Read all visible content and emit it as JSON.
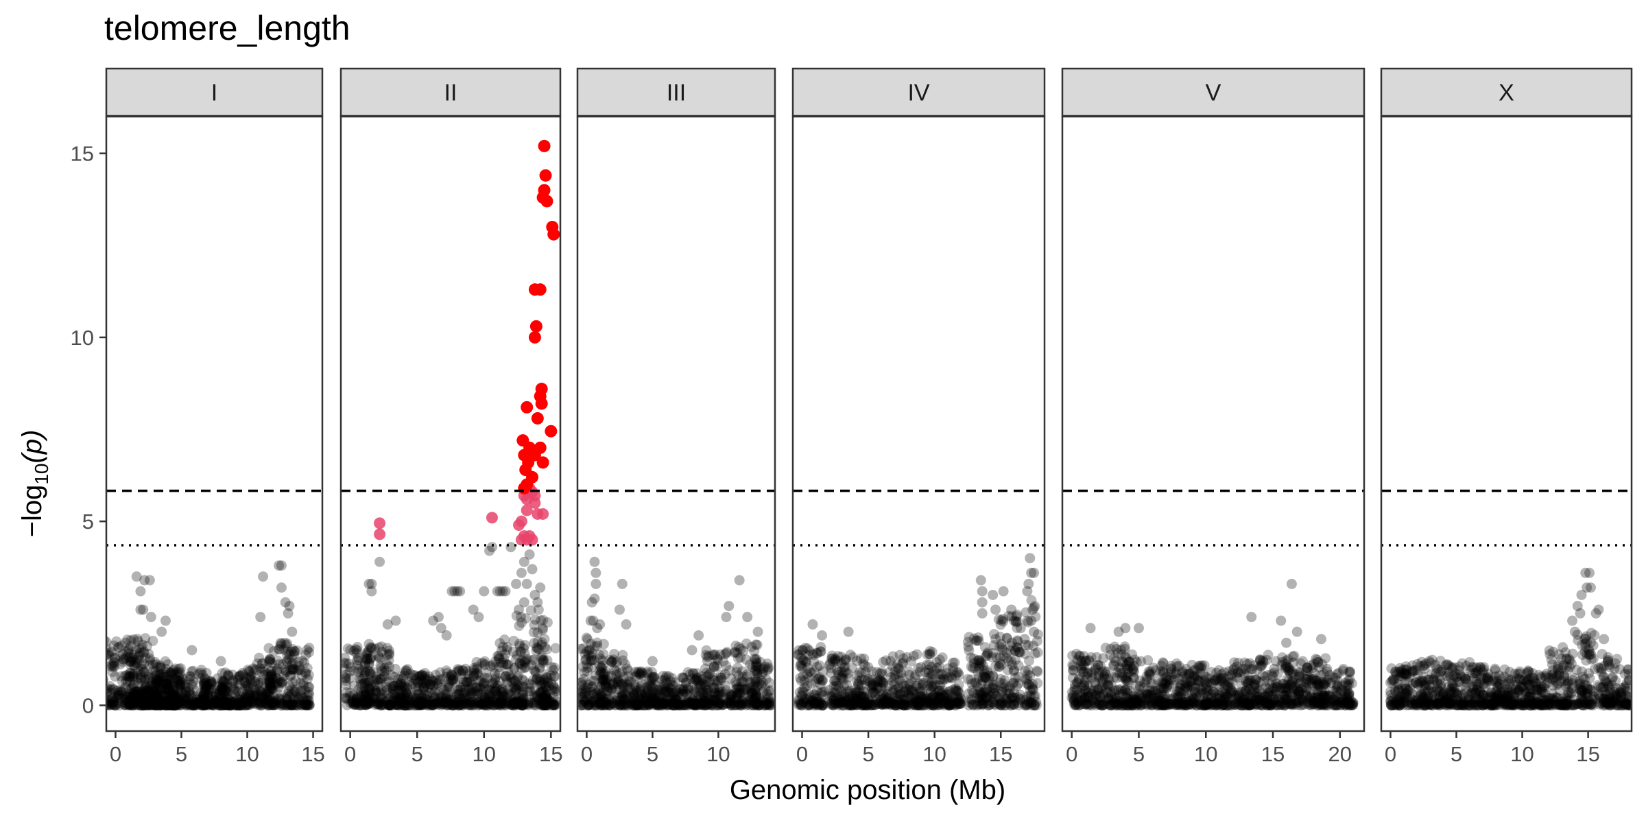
{
  "chart_data": {
    "type": "scatter",
    "title": "telomere_length",
    "xlabel": "Genomic position (Mb)",
    "ylabel_main": "−log",
    "ylabel_sub": "10",
    "ylabel_rest": "(p)",
    "ylim": [
      -0.7,
      16.0
    ],
    "yticks": [
      0,
      5,
      10,
      15
    ],
    "thresholds": {
      "bonferroni_dashed": 5.83,
      "eigen_dotted": 4.35
    },
    "colors": {
      "background_points": "#000000",
      "above_bonferroni": "#ff0000",
      "above_eigen": "#e8436b",
      "strip_fill": "#d9d9d9"
    },
    "panels": [
      {
        "chromosome": "I",
        "xlim": [
          -0.7,
          15.7
        ],
        "xticks": [
          0,
          5,
          10,
          15
        ],
        "bulk_density": [
          [
            0.5,
            3.0,
            1.8
          ],
          [
            2.0,
            2.0,
            1.9
          ],
          [
            3.0,
            2.0,
            1.2
          ],
          [
            4.0,
            2.0,
            1.1
          ],
          [
            5.5,
            3.0,
            1.0
          ],
          [
            7.5,
            2.0,
            0.8
          ],
          [
            9.0,
            2.0,
            0.9
          ],
          [
            11.0,
            2.0,
            1.3
          ],
          [
            12.5,
            2.0,
            1.7
          ],
          [
            14.0,
            1.5,
            1.6
          ]
        ],
        "sparse_points": [
          [
            1.6,
            3.5
          ],
          [
            1.9,
            3.1
          ],
          [
            1.9,
            2.6
          ],
          [
            2.1,
            2.6
          ],
          [
            2.2,
            3.4
          ],
          [
            2.6,
            3.4
          ],
          [
            2.7,
            2.4
          ],
          [
            3.5,
            2.0
          ],
          [
            3.8,
            2.3
          ],
          [
            5.8,
            1.5
          ],
          [
            8.0,
            1.2
          ],
          [
            11.2,
            3.5
          ],
          [
            11.0,
            2.4
          ],
          [
            12.4,
            3.8
          ],
          [
            12.6,
            3.8
          ],
          [
            12.6,
            3.2
          ],
          [
            12.9,
            2.8
          ],
          [
            13.1,
            2.5
          ],
          [
            13.4,
            2.0
          ],
          [
            13.2,
            2.7
          ]
        ],
        "pink_points": [],
        "red_points": []
      },
      {
        "chromosome": "II",
        "xlim": [
          -0.7,
          15.7
        ],
        "xticks": [
          0,
          5,
          10,
          15
        ],
        "bulk_density": [
          [
            0.5,
            2.0,
            1.6
          ],
          [
            2.0,
            2.0,
            1.7
          ],
          [
            4.0,
            2.0,
            1.0
          ],
          [
            6.0,
            2.0,
            0.9
          ],
          [
            8.0,
            2.0,
            1.0
          ],
          [
            10.0,
            2.0,
            1.2
          ],
          [
            12.0,
            2.0,
            1.8
          ],
          [
            13.5,
            2.5,
            2.6
          ],
          [
            14.8,
            1.2,
            1.6
          ]
        ],
        "sparse_points": [
          [
            1.4,
            3.3
          ],
          [
            1.6,
            3.1
          ],
          [
            1.6,
            3.3
          ],
          [
            2.2,
            3.9
          ],
          [
            2.8,
            2.2
          ],
          [
            3.4,
            2.3
          ],
          [
            6.2,
            2.3
          ],
          [
            6.6,
            2.4
          ],
          [
            6.8,
            2.1
          ],
          [
            7.2,
            1.9
          ],
          [
            7.6,
            3.1
          ],
          [
            7.8,
            3.1
          ],
          [
            8.0,
            3.1
          ],
          [
            8.2,
            3.1
          ],
          [
            9.2,
            2.6
          ],
          [
            9.6,
            2.4
          ],
          [
            10.0,
            3.1
          ],
          [
            10.4,
            4.2
          ],
          [
            10.6,
            4.3
          ],
          [
            11.0,
            3.1
          ],
          [
            11.2,
            3.1
          ],
          [
            11.4,
            3.1
          ],
          [
            11.6,
            3.1
          ],
          [
            12.0,
            4.3
          ],
          [
            12.4,
            3.3
          ],
          [
            12.8,
            3.6
          ],
          [
            13.0,
            3.9
          ],
          [
            13.2,
            3.3
          ],
          [
            13.4,
            4.1
          ],
          [
            13.6,
            3.7
          ],
          [
            13.8,
            3.0
          ],
          [
            14.0,
            2.8
          ],
          [
            14.2,
            3.2
          ],
          [
            12.6,
            2.6
          ],
          [
            13.0,
            2.8
          ]
        ],
        "pink_points": [
          [
            2.2,
            4.95
          ],
          [
            2.2,
            4.65
          ],
          [
            10.6,
            5.1
          ],
          [
            12.6,
            4.9
          ],
          [
            12.8,
            4.5
          ],
          [
            13.0,
            4.6
          ],
          [
            13.2,
            4.5
          ],
          [
            13.4,
            4.6
          ],
          [
            13.6,
            4.5
          ],
          [
            13.0,
            5.7
          ],
          [
            13.2,
            5.6
          ],
          [
            13.4,
            5.9
          ],
          [
            13.6,
            5.8
          ],
          [
            13.8,
            5.5
          ],
          [
            14.0,
            5.2
          ],
          [
            14.4,
            5.2
          ],
          [
            12.8,
            5.0
          ],
          [
            13.2,
            5.3
          ],
          [
            13.8,
            5.7
          ]
        ],
        "red_points": [
          [
            14.5,
            15.2
          ],
          [
            14.6,
            14.4
          ],
          [
            14.5,
            14.0
          ],
          [
            14.4,
            13.8
          ],
          [
            14.7,
            13.7
          ],
          [
            15.1,
            13.0
          ],
          [
            15.2,
            12.8
          ],
          [
            13.8,
            11.3
          ],
          [
            14.2,
            11.3
          ],
          [
            13.9,
            10.3
          ],
          [
            13.8,
            10.0
          ],
          [
            14.3,
            8.6
          ],
          [
            14.2,
            8.4
          ],
          [
            14.3,
            8.2
          ],
          [
            13.2,
            8.1
          ],
          [
            14.0,
            7.8
          ],
          [
            15.0,
            7.45
          ],
          [
            12.9,
            7.2
          ],
          [
            13.4,
            7.0
          ],
          [
            14.2,
            7.0
          ],
          [
            13.0,
            6.8
          ],
          [
            13.8,
            6.8
          ],
          [
            13.3,
            6.6
          ],
          [
            14.4,
            6.6
          ],
          [
            13.1,
            6.4
          ],
          [
            13.6,
            6.2
          ],
          [
            13.2,
            6.0
          ],
          [
            13.0,
            5.9
          ]
        ]
      },
      {
        "chromosome": "III",
        "xlim": [
          -0.7,
          14.3
        ],
        "xticks": [
          0,
          5,
          10
        ],
        "bulk_density": [
          [
            0.5,
            2.0,
            1.9
          ],
          [
            2.0,
            2.0,
            1.4
          ],
          [
            4.0,
            2.0,
            1.0
          ],
          [
            6.0,
            2.0,
            0.8
          ],
          [
            8.0,
            2.0,
            0.9
          ],
          [
            10.0,
            2.0,
            1.5
          ],
          [
            12.0,
            2.0,
            1.7
          ],
          [
            13.4,
            1.2,
            1.2
          ]
        ],
        "sparse_points": [
          [
            0.6,
            3.9
          ],
          [
            0.7,
            3.6
          ],
          [
            0.7,
            3.3
          ],
          [
            0.4,
            2.8
          ],
          [
            0.6,
            2.9
          ],
          [
            0.3,
            2.3
          ],
          [
            0.5,
            2.3
          ],
          [
            0.8,
            2.1
          ],
          [
            1.0,
            2.2
          ],
          [
            2.5,
            2.6
          ],
          [
            2.7,
            3.3
          ],
          [
            3.0,
            2.2
          ],
          [
            5.0,
            1.2
          ],
          [
            8.0,
            1.5
          ],
          [
            8.5,
            1.9
          ],
          [
            10.6,
            2.4
          ],
          [
            10.8,
            2.7
          ],
          [
            11.6,
            3.4
          ],
          [
            12.2,
            2.4
          ],
          [
            13.0,
            2.0
          ]
        ],
        "pink_points": [],
        "red_points": []
      },
      {
        "chromosome": "IV",
        "xlim": [
          -0.7,
          18.3
        ],
        "xticks": [
          0,
          5,
          10,
          15
        ],
        "bulk_density": [
          [
            0.7,
            2.0,
            1.6
          ],
          [
            3.0,
            2.0,
            1.4
          ],
          [
            5.0,
            2.0,
            1.3
          ],
          [
            7.0,
            2.0,
            1.4
          ],
          [
            9.0,
            2.0,
            1.5
          ],
          [
            11.0,
            2.0,
            1.3
          ],
          [
            13.5,
            2.0,
            2.0
          ],
          [
            15.5,
            2.0,
            2.5
          ],
          [
            17.3,
            1.0,
            3.0
          ]
        ],
        "sparse_points": [
          [
            0.8,
            2.2
          ],
          [
            1.5,
            1.9
          ],
          [
            3.5,
            2.0
          ],
          [
            13.5,
            3.4
          ],
          [
            13.6,
            3.1
          ],
          [
            13.6,
            2.8
          ],
          [
            13.6,
            2.5
          ],
          [
            14.4,
            3.0
          ],
          [
            14.6,
            2.6
          ],
          [
            15.2,
            3.1
          ],
          [
            15.8,
            2.6
          ],
          [
            16.0,
            2.3
          ],
          [
            16.5,
            2.1
          ],
          [
            17.0,
            3.1
          ],
          [
            17.1,
            3.3
          ],
          [
            17.3,
            3.6
          ],
          [
            17.5,
            3.6
          ],
          [
            17.2,
            4.0
          ],
          [
            17.4,
            2.6
          ],
          [
            17.3,
            2.3
          ],
          [
            17.5,
            2.0
          ],
          [
            16.8,
            1.8
          ]
        ],
        "pink_points": [],
        "red_points": []
      },
      {
        "chromosome": "V",
        "xlim": [
          -0.7,
          21.8
        ],
        "xticks": [
          0,
          5,
          10,
          15,
          20
        ],
        "bulk_density": [
          [
            1.0,
            2.0,
            1.4
          ],
          [
            3.0,
            2.0,
            1.6
          ],
          [
            5.0,
            2.0,
            1.4
          ],
          [
            7.0,
            2.0,
            1.2
          ],
          [
            9.0,
            2.0,
            1.1
          ],
          [
            11.0,
            2.0,
            1.0
          ],
          [
            13.0,
            2.0,
            1.2
          ],
          [
            15.0,
            2.0,
            1.5
          ],
          [
            17.0,
            2.0,
            1.4
          ],
          [
            19.0,
            2.0,
            1.3
          ],
          [
            20.5,
            1.0,
            1.0
          ]
        ],
        "sparse_points": [
          [
            1.4,
            2.1
          ],
          [
            3.5,
            2.0
          ],
          [
            4.0,
            2.1
          ],
          [
            5.0,
            2.1
          ],
          [
            13.4,
            2.4
          ],
          [
            15.6,
            2.3
          ],
          [
            16.4,
            3.3
          ],
          [
            16.8,
            2.0
          ],
          [
            18.6,
            1.8
          ],
          [
            16.0,
            1.7
          ]
        ],
        "pink_points": [],
        "red_points": []
      },
      {
        "chromosome": "X",
        "xlim": [
          -0.7,
          18.3
        ],
        "xticks": [
          0,
          5,
          10,
          15
        ],
        "bulk_density": [
          [
            1.0,
            2.0,
            1.1
          ],
          [
            3.0,
            2.0,
            1.3
          ],
          [
            5.0,
            2.0,
            1.2
          ],
          [
            7.0,
            2.0,
            1.1
          ],
          [
            9.0,
            2.0,
            1.0
          ],
          [
            11.0,
            2.0,
            1.0
          ],
          [
            13.0,
            2.0,
            1.6
          ],
          [
            14.8,
            1.5,
            2.0
          ],
          [
            16.5,
            1.5,
            1.4
          ],
          [
            17.8,
            0.8,
            1.0
          ]
        ],
        "sparse_points": [
          [
            14.8,
            3.6
          ],
          [
            15.1,
            3.6
          ],
          [
            14.9,
            3.2
          ],
          [
            15.2,
            3.2
          ],
          [
            14.5,
            3.0
          ],
          [
            14.2,
            2.7
          ],
          [
            14.4,
            2.5
          ],
          [
            15.6,
            2.5
          ],
          [
            15.8,
            2.6
          ],
          [
            13.8,
            2.3
          ],
          [
            14.0,
            2.0
          ],
          [
            16.2,
            1.8
          ],
          [
            16.5,
            1.2
          ],
          [
            17.0,
            1.0
          ]
        ],
        "pink_points": [],
        "red_points": []
      }
    ]
  }
}
